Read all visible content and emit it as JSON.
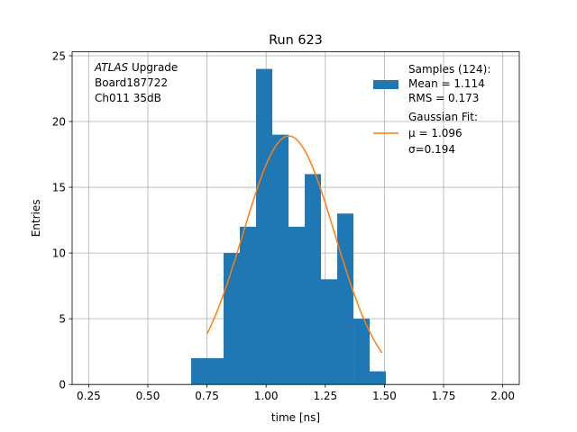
{
  "chart_data": {
    "type": "bar",
    "title": "Run 623",
    "xlabel": "time [ns]",
    "ylabel": "Entries",
    "xlim": [
      0.18,
      2.07
    ],
    "ylim": [
      0,
      25.3
    ],
    "grid": true,
    "xticks": [
      0.25,
      0.5,
      0.75,
      1.0,
      1.25,
      1.5,
      1.75,
      2.0
    ],
    "xtick_labels": [
      "0.25",
      "0.50",
      "0.75",
      "1.00",
      "1.25",
      "1.50",
      "1.75",
      "2.00"
    ],
    "yticks": [
      0,
      5,
      10,
      15,
      20,
      25
    ],
    "ytick_labels": [
      "0",
      "5",
      "10",
      "15",
      "20",
      "25"
    ],
    "histogram": {
      "name": "Samples (124):",
      "color": "#1f77b4",
      "bin_edges": [
        0.683,
        0.7516,
        0.8202,
        0.8888,
        0.9574,
        1.026,
        1.0946,
        1.1632,
        1.2318,
        1.3004,
        1.369,
        1.4376,
        1.5062
      ],
      "counts": [
        2,
        2,
        10,
        12,
        24,
        19,
        12,
        16,
        8,
        13,
        5,
        1
      ]
    },
    "fit": {
      "name": "Gaussian Fit:",
      "color": "#ff7f0e",
      "amplitude": 18.9,
      "mu": 1.096,
      "sigma": 0.194,
      "x_range": [
        0.75,
        1.49
      ]
    },
    "annotation": {
      "italic_part": "ATLAS",
      "line1_rest": " Upgrade",
      "line2": " Board187722",
      "line3": " Ch011 35dB"
    },
    "legend": {
      "placement": "top-right",
      "samples_title": "Samples (124):",
      "samples_mean": " Mean = 1.114",
      "samples_rms": " RMS = 0.173",
      "fit_title": "Gaussian Fit:",
      "fit_mu": " μ = 1.096",
      "fit_sigma": " σ=0.194"
    }
  }
}
